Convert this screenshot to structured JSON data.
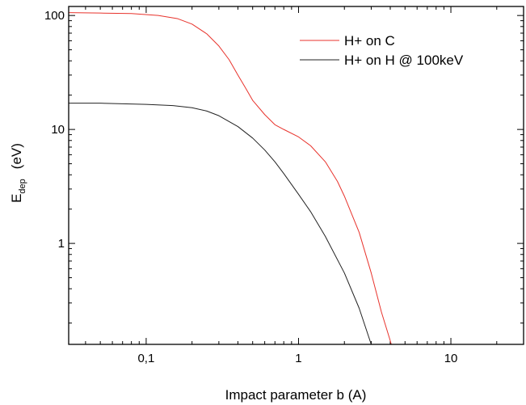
{
  "chart_data": {
    "type": "line",
    "xlabel": "Impact parameter b (A)",
    "ylabel_main": "E",
    "ylabel_sub": "dep",
    "ylabel_unit": "(eV)",
    "x_scale": "log",
    "y_scale": "log",
    "xlim": [
      0.031,
      30
    ],
    "ylim": [
      0.13,
      120
    ],
    "x_ticks": [
      {
        "value": 0.1,
        "label": "0,1"
      },
      {
        "value": 1,
        "label": "1"
      },
      {
        "value": 10,
        "label": "10"
      }
    ],
    "y_ticks": [
      {
        "value": 1,
        "label": "1"
      },
      {
        "value": 10,
        "label": "10"
      },
      {
        "value": 100,
        "label": "100"
      }
    ],
    "grid": false,
    "legend_position": "top-right",
    "series": [
      {
        "name": "H+ on C",
        "color": "#e8332c",
        "x": [
          0.031,
          0.05,
          0.08,
          0.12,
          0.16,
          0.2,
          0.25,
          0.3,
          0.35,
          0.4,
          0.45,
          0.5,
          0.6,
          0.7,
          0.8,
          1.0,
          1.2,
          1.5,
          1.8,
          2.0,
          2.5,
          3.0,
          3.5,
          4.0,
          4.2
        ],
        "y": [
          106,
          105,
          104,
          100,
          94,
          84,
          69,
          54,
          41,
          30,
          23,
          18,
          13.5,
          11,
          10,
          8.6,
          7.2,
          5.2,
          3.5,
          2.6,
          1.25,
          0.55,
          0.25,
          0.14,
          0.11
        ]
      },
      {
        "name": "H+ on H @ 100keV",
        "color": "#222222",
        "x": [
          0.031,
          0.05,
          0.1,
          0.15,
          0.2,
          0.25,
          0.3,
          0.4,
          0.5,
          0.6,
          0.7,
          0.8,
          1.0,
          1.2,
          1.5,
          2.0,
          2.5,
          3.0,
          3.2
        ],
        "y": [
          17,
          17,
          16.6,
          16.2,
          15.5,
          14.5,
          13.2,
          10.6,
          8.4,
          6.6,
          5.2,
          4.1,
          2.7,
          1.9,
          1.15,
          0.55,
          0.27,
          0.13,
          0.1
        ]
      }
    ]
  }
}
